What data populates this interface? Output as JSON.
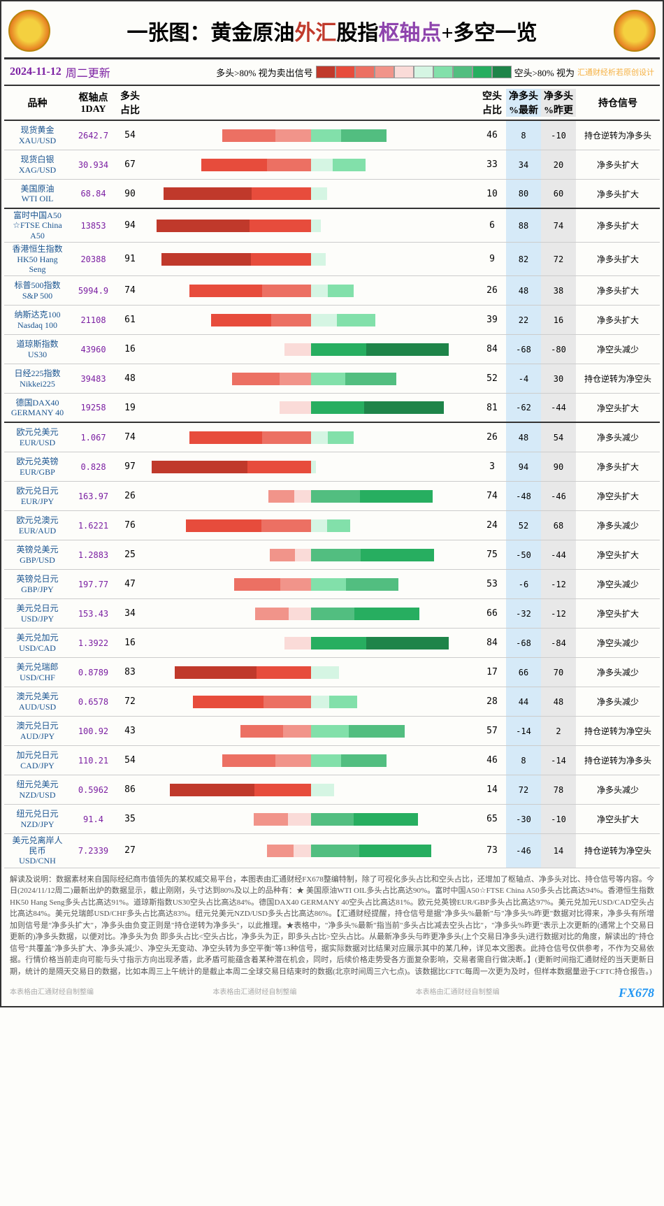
{
  "title_parts": {
    "p1": "一张图：黄金原油",
    "p2": "外汇",
    "p3": "股指",
    "p4": "枢轴点",
    "p5": "+多空一览"
  },
  "date": "2024-11-12",
  "day": "周二更新",
  "legend_left": "多头>80% 视为卖出信号",
  "legend_right": "空头>80% 视为",
  "watermark": "汇通财经析若原创设计",
  "headers": {
    "name": "品种",
    "pivot": "枢轴点\n1DAY",
    "long": "多头\n占比",
    "short": "空头\n占比",
    "net1": "净多头\n%最新",
    "net2": "净多头\n%昨更",
    "sig": "持仓信号"
  },
  "red_scale": [
    "#c0392b",
    "#e74c3c",
    "#ec7063",
    "#f1948a",
    "#fadbd8"
  ],
  "green_scale": [
    "#d5f5e3",
    "#82e0aa",
    "#52be80",
    "#27ae60",
    "#1e8449"
  ],
  "groups": [
    {
      "rows": [
        {
          "name": "现货黄金\nXAU/USD",
          "pivot": "2642.7",
          "long": 54,
          "short": 46,
          "net1": 8,
          "net2": -10,
          "sig": "持仓逆转为净多头"
        },
        {
          "name": "现货白银\nXAG/USD",
          "pivot": "30.934",
          "long": 67,
          "short": 33,
          "net1": 34,
          "net2": 20,
          "sig": "净多头扩大"
        },
        {
          "name": "美国原油\nWTI OIL",
          "pivot": "68.84",
          "long": 90,
          "short": 10,
          "net1": 80,
          "net2": 60,
          "sig": "净多头扩大"
        }
      ]
    },
    {
      "rows": [
        {
          "name": "富时中国A50\n☆FTSE China\nA50",
          "pivot": "13853",
          "long": 94,
          "short": 6,
          "net1": 88,
          "net2": 74,
          "sig": "净多头扩大"
        },
        {
          "name": "香港恒生指数\nHK50 Hang\nSeng",
          "pivot": "20388",
          "long": 91,
          "short": 9,
          "net1": 82,
          "net2": 72,
          "sig": "净多头扩大"
        },
        {
          "name": "标普500指数\nS&P 500",
          "pivot": "5994.9",
          "long": 74,
          "short": 26,
          "net1": 48,
          "net2": 38,
          "sig": "净多头扩大"
        },
        {
          "name": "纳斯达克100\nNasdaq 100",
          "pivot": "21108",
          "long": 61,
          "short": 39,
          "net1": 22,
          "net2": 16,
          "sig": "净多头扩大"
        },
        {
          "name": "道琼斯指数\nUS30",
          "pivot": "43960",
          "long": 16,
          "short": 84,
          "net1": -68,
          "net2": -80,
          "sig": "净空头减少"
        },
        {
          "name": "日经225指数\nNikkei225",
          "pivot": "39483",
          "long": 48,
          "short": 52,
          "net1": -4,
          "net2": 30,
          "sig": "持仓逆转为净空头"
        },
        {
          "name": "德国DAX40\nGERMANY 40",
          "pivot": "19258",
          "long": 19,
          "short": 81,
          "net1": -62,
          "net2": -44,
          "sig": "净空头扩大"
        }
      ]
    },
    {
      "rows": [
        {
          "name": "欧元兑美元\nEUR/USD",
          "pivot": "1.067",
          "long": 74,
          "short": 26,
          "net1": 48,
          "net2": 54,
          "sig": "净多头减少"
        },
        {
          "name": "欧元兑英镑\nEUR/GBP",
          "pivot": "0.828",
          "long": 97,
          "short": 3,
          "net1": 94,
          "net2": 90,
          "sig": "净多头扩大"
        },
        {
          "name": "欧元兑日元\nEUR/JPY",
          "pivot": "163.97",
          "long": 26,
          "short": 74,
          "net1": -48,
          "net2": -46,
          "sig": "净空头扩大"
        },
        {
          "name": "欧元兑澳元\nEUR/AUD",
          "pivot": "1.6221",
          "long": 76,
          "short": 24,
          "net1": 52,
          "net2": 68,
          "sig": "净多头减少"
        },
        {
          "name": "英镑兑美元\nGBP/USD",
          "pivot": "1.2883",
          "long": 25,
          "short": 75,
          "net1": -50,
          "net2": -44,
          "sig": "净空头扩大"
        },
        {
          "name": "英镑兑日元\nGBP/JPY",
          "pivot": "197.77",
          "long": 47,
          "short": 53,
          "net1": -6,
          "net2": -12,
          "sig": "净空头减少"
        },
        {
          "name": "美元兑日元\nUSD/JPY",
          "pivot": "153.43",
          "long": 34,
          "short": 66,
          "net1": -32,
          "net2": -12,
          "sig": "净空头扩大"
        },
        {
          "name": "美元兑加元\nUSD/CAD",
          "pivot": "1.3922",
          "long": 16,
          "short": 84,
          "net1": -68,
          "net2": -84,
          "sig": "净空头减少"
        },
        {
          "name": "美元兑瑞郎\nUSD/CHF",
          "pivot": "0.8789",
          "long": 83,
          "short": 17,
          "net1": 66,
          "net2": 70,
          "sig": "净多头减少"
        },
        {
          "name": "澳元兑美元\nAUD/USD",
          "pivot": "0.6578",
          "long": 72,
          "short": 28,
          "net1": 44,
          "net2": 48,
          "sig": "净多头减少"
        },
        {
          "name": "澳元兑日元\nAUD/JPY",
          "pivot": "100.92",
          "long": 43,
          "short": 57,
          "net1": -14,
          "net2": 2,
          "sig": "持仓逆转为净空头"
        },
        {
          "name": "加元兑日元\nCAD/JPY",
          "pivot": "110.21",
          "long": 54,
          "short": 46,
          "net1": 8,
          "net2": -14,
          "sig": "持仓逆转为净多头"
        },
        {
          "name": "纽元兑美元\nNZD/USD",
          "pivot": "0.5962",
          "long": 86,
          "short": 14,
          "net1": 72,
          "net2": 78,
          "sig": "净多头减少"
        },
        {
          "name": "纽元兑日元\nNZD/JPY",
          "pivot": "91.4",
          "long": 35,
          "short": 65,
          "net1": -30,
          "net2": -10,
          "sig": "净空头扩大"
        },
        {
          "name": "美元兑离岸人\n民币\nUSD/CNH",
          "pivot": "7.2339",
          "long": 27,
          "short": 73,
          "net1": -46,
          "net2": 14,
          "sig": "持仓逆转为净空头"
        }
      ]
    }
  ],
  "footer": "解读及说明：数据素材来自国际经纪商市值领先的某权威交易平台，本图表由汇通财经FX678整编特制，除了可视化多头占比和空头占比，还增加了枢轴点、净多头对比、持仓信号等内容。今日(2024/11/12周二)最新出炉的数据显示，截止刚刚，头寸达到80%及以上的品种有：★ 美国原油WTI OIL多头占比高达90%。富时中国A50☆FTSE China A50多头占比高达94%。香港恒生指数HK50 Hang Seng多头占比高达91%。道琼斯指数US30空头占比高达84%。德国DAX40 GERMANY 40空头占比高达81%。欧元兑英镑EUR/GBP多头占比高达97%。美元兑加元USD/CAD空头占比高达84%。美元兑瑞郎USD/CHF多头占比高达83%。纽元兑美元NZD/USD多头占比高达86%。【汇通财经提醒，持仓信号是据\"净多头%最新\"与\"净多头%昨更\"数据对比得来，净多头有所增加则信号是\"净多头扩大\"，净多头由负变正则是\"持仓逆转为净多头\"，以此推理。★表格中，\"净多头%最新\"指当前\"多头占比减去空头占比\"，\"净多头%昨更\"表示上次更新的(通常上个交易日更新的)净多头数据，以便对比。净多头为负 即多头占比<空头占比，净多头为正，即多头占比>空头占比。从最新净多头与昨更净多头(上个交易日净多头)进行数据对比的角度，解读出的\"持仓信号\"共覆盖\"净多头扩大、净多头减少、净空头无变动、净空头转为多空平衡\"等13种信号，据实际数据对比结果对应展示其中的某几种，详见本文图表。此持仓信号仅供参考，不作为交易依据。行情价格当前走向可能与头寸指示方向出现矛盾，此矛盾可能蕴含着某种潜在机会，同时，后续价格走势受各方面复杂影响，交易者需自行做决断。】(更新时间指汇通财经的当天更新日期，统计的是隔天交易日的数据，比如本周三上午统计的是截止本周二全球交易日结束时的数据(北京时间周三六七点)。该数据比CFTC每周一次更为及时，但样本数据量逊于CFTC持仓报告。)",
  "credit": "本表格由汇通财经自制整编",
  "brand": "FX678"
}
